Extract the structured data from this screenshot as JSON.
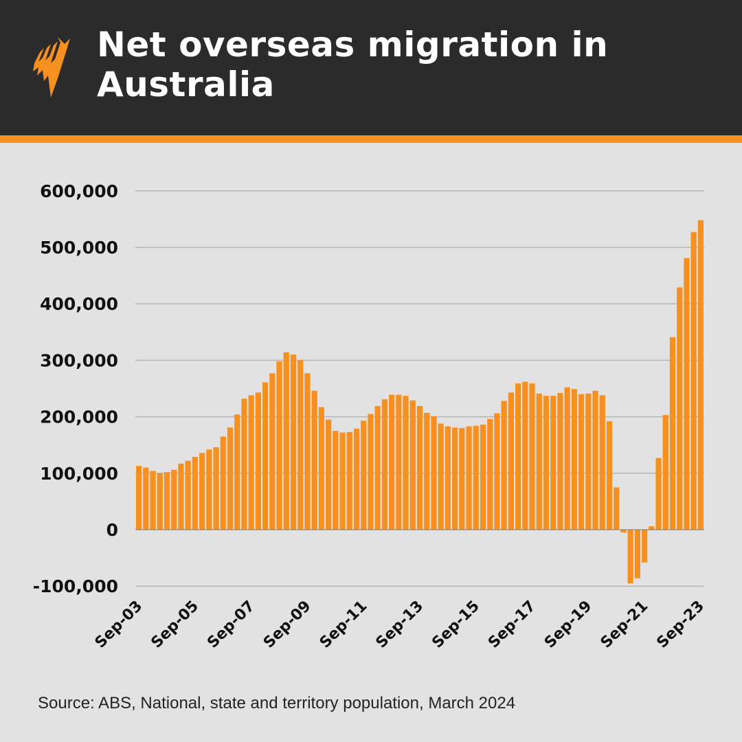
{
  "header": {
    "title": "Net overseas migration in Australia",
    "logo": "SBS"
  },
  "colors": {
    "bar": "#f7901e",
    "header_bg": "#2b2b2b",
    "accent": "#f7901e",
    "background": "#e2e2e2",
    "grid": "#b5b5b5"
  },
  "chart_data": {
    "type": "bar",
    "title": "Net overseas migration in Australia",
    "xlabel": "",
    "ylabel": "",
    "ylim": [
      -100000,
      600000
    ],
    "yticks": [
      600000,
      500000,
      400000,
      300000,
      200000,
      100000,
      0,
      -100000
    ],
    "ytick_labels": [
      "600,000",
      "500,000",
      "400,000",
      "300,000",
      "200,000",
      "100,000",
      "0",
      "-100,000"
    ],
    "xtick_labels": [
      "Sep-03",
      "Sep-05",
      "Sep-07",
      "Sep-09",
      "Sep-11",
      "Sep-13",
      "Sep-15",
      "Sep-17",
      "Sep-19",
      "Sep-21",
      "Sep-23"
    ],
    "grid": true,
    "frequency": "quarterly, Sep-03 to Sep-23",
    "values": [
      113000,
      110000,
      104000,
      100000,
      102000,
      106000,
      117000,
      122000,
      129000,
      136000,
      142000,
      146000,
      165000,
      181000,
      204000,
      232000,
      238000,
      243000,
      261000,
      277000,
      298000,
      314000,
      310000,
      300000,
      277000,
      246000,
      217000,
      195000,
      175000,
      172000,
      173000,
      179000,
      193000,
      205000,
      219000,
      231000,
      239000,
      239000,
      237000,
      229000,
      219000,
      207000,
      201000,
      188000,
      183000,
      181000,
      180000,
      183000,
      184000,
      186000,
      196000,
      206000,
      228000,
      243000,
      259000,
      262000,
      259000,
      241000,
      237000,
      237000,
      242000,
      252000,
      249000,
      240000,
      241000,
      246000,
      238000,
      192000,
      75000,
      -5000,
      -95000,
      -86000,
      -58000,
      6000,
      127000,
      203000,
      341000,
      429000,
      481000,
      527000,
      548000
    ]
  },
  "footer": {
    "source": "Source: ABS, National, state and territory population, March 2024"
  }
}
